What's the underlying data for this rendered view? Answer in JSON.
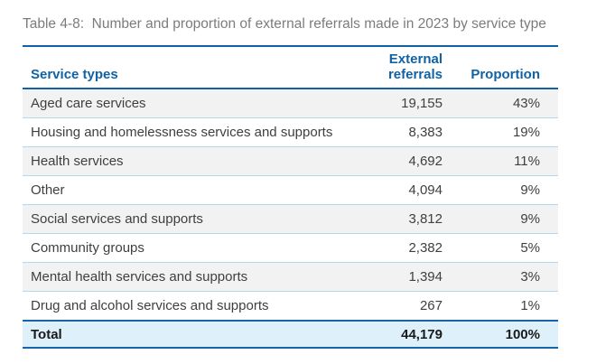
{
  "title": "Table 4-8:  Number and proportion of external referrals made in 2023 by service type",
  "table": {
    "columns": [
      "Service types",
      "External referrals",
      "Proportion"
    ],
    "rows": [
      {
        "service": "Aged care services",
        "referrals": "19,155",
        "proportion": "43%"
      },
      {
        "service": "Housing and homelessness services and supports",
        "referrals": "8,383",
        "proportion": "19%"
      },
      {
        "service": "Health services",
        "referrals": "4,692",
        "proportion": "11%"
      },
      {
        "service": "Other",
        "referrals": "4,094",
        "proportion": "9%"
      },
      {
        "service": "Social services and supports",
        "referrals": "3,812",
        "proportion": "9%"
      },
      {
        "service": "Community groups",
        "referrals": "2,382",
        "proportion": "5%"
      },
      {
        "service": "Mental health services and supports",
        "referrals": "1,394",
        "proportion": "3%"
      },
      {
        "service": "Drug and alcohol services and supports",
        "referrals": "267",
        "proportion": "1%"
      }
    ],
    "total": {
      "label": "Total",
      "referrals": "44,179",
      "proportion": "100%"
    }
  },
  "chart_data": {
    "type": "table",
    "title": "Table 4-8: Number and proportion of external referrals made in 2023 by service type",
    "categories": [
      "Aged care services",
      "Housing and homelessness services and supports",
      "Health services",
      "Other",
      "Social services and supports",
      "Community groups",
      "Mental health services and supports",
      "Drug and alcohol services and supports"
    ],
    "series": [
      {
        "name": "External referrals",
        "values": [
          19155,
          8383,
          4692,
          4094,
          3812,
          2382,
          1394,
          267
        ]
      },
      {
        "name": "Proportion",
        "values": [
          "43%",
          "19%",
          "11%",
          "9%",
          "9%",
          "5%",
          "3%",
          "1%"
        ]
      }
    ],
    "total": {
      "external_referrals": 44179,
      "proportion": "100%"
    }
  },
  "colors": {
    "accent_blue": "#1062A5",
    "separator_blue": "#B3D9EF",
    "row_shade_grey": "#F2F2F2",
    "total_row_bg": "#DEF0FA",
    "title_grey": "#7C7C7C",
    "body_text": "#3F3F3F"
  }
}
